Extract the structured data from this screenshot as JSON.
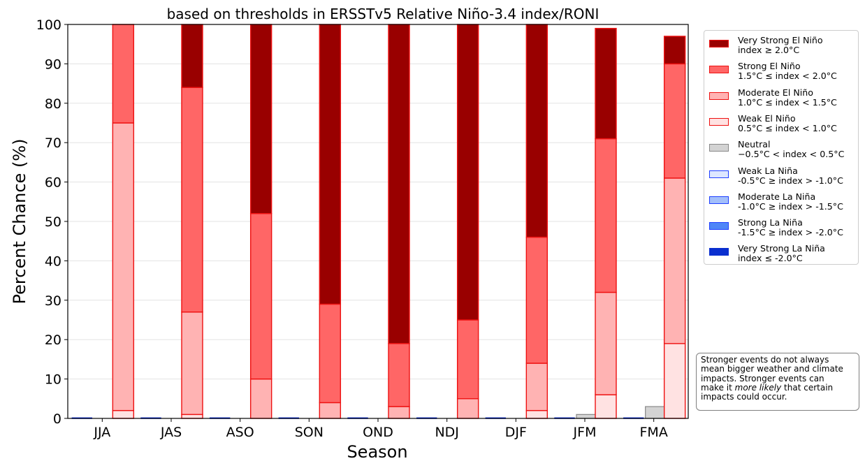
{
  "chart_data": {
    "type": "bar",
    "stacked": true,
    "title": "based on thresholds in ERSSTv5 Relative Niño-3.4 index/RONI",
    "xlabel": "Season",
    "ylabel": "Percent Chance (%)",
    "ylim": [
      0,
      100
    ],
    "yticks": [
      "0",
      "10",
      "20",
      "30",
      "40",
      "50",
      "60",
      "70",
      "80",
      "90",
      "100"
    ],
    "grid": "horizontal",
    "legend_position": "outside-right",
    "categories": [
      "JJA",
      "JAS",
      "ASO",
      "SON",
      "OND",
      "NDJ",
      "DJF",
      "JFM",
      "FMA"
    ],
    "series": [
      {
        "name": "Very Strong El Niño",
        "range": "index ≥ 2.0°C",
        "fill": "#990000",
        "edge": "#ee1111",
        "values": [
          0,
          16,
          48,
          71,
          81,
          75,
          54,
          28,
          7
        ]
      },
      {
        "name": "Strong El Niño",
        "range": "1.5°C ≤ index < 2.0°C",
        "fill": "#ff6666",
        "edge": "#ee1111",
        "values": [
          25,
          57,
          42,
          25,
          16,
          20,
          32,
          39,
          29
        ]
      },
      {
        "name": "Moderate El Niño",
        "range": "1.0°C ≤ index < 1.5°C",
        "fill": "#ffb3b3",
        "edge": "#ee1111",
        "values": [
          73,
          26,
          10,
          4,
          3,
          5,
          12,
          26,
          42
        ]
      },
      {
        "name": "Weak El Niño",
        "range": "0.5°C ≤ index < 1.0°C",
        "fill": "#ffe2e2",
        "edge": "#ee1111",
        "values": [
          2,
          1,
          0,
          0,
          0,
          0,
          2,
          6,
          19
        ]
      },
      {
        "name": "Neutral",
        "range": "−0.5°C < index < 0.5°C",
        "fill": "#d3d3d3",
        "edge": "#888888",
        "values": [
          0,
          0,
          0,
          0,
          0,
          0,
          0,
          1,
          3
        ]
      },
      {
        "name": "Weak La Niña",
        "range": "-0.5°C ≥ index > -1.0°C",
        "fill": "#dde7ff",
        "edge": "#1f3fff",
        "values": [
          0,
          0,
          0,
          0,
          0,
          0,
          0,
          0,
          0
        ]
      },
      {
        "name": "Moderate La Niña",
        "range": "-1.0°C ≥ index > -1.5°C",
        "fill": "#a3bffa",
        "edge": "#1f3fff",
        "values": [
          0,
          0,
          0,
          0,
          0,
          0,
          0,
          0,
          0
        ]
      },
      {
        "name": "Strong La Niña",
        "range": "-1.5°C ≥ index > -2.0°C",
        "fill": "#4f86f7",
        "edge": "#1f3fff",
        "values": [
          0,
          0,
          0,
          0,
          0,
          0,
          0,
          0,
          0
        ]
      },
      {
        "name": "Very Strong La Niña",
        "range": "index ≤ -2.0°C",
        "fill": "#0a2fcf",
        "edge": "#0a2fcf",
        "values": [
          0,
          0,
          0,
          0,
          0,
          0,
          0,
          0,
          0
        ]
      }
    ],
    "annotation": {
      "lines": [
        "Stronger events do not always",
        "mean bigger weather and climate",
        "impacts. Stronger events can"
      ],
      "line4_before": "make it ",
      "line4_emphasis": "more likely",
      "line4_after": " that certain",
      "line5": "impacts could occur."
    }
  }
}
